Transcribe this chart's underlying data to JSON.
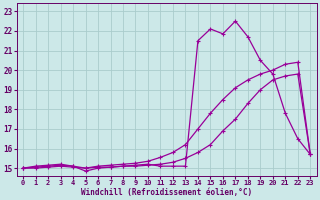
{
  "background_color": "#cce8e8",
  "grid_color": "#aacccc",
  "line_color": "#990099",
  "xlabel": "Windchill (Refroidissement éolien,°C)",
  "xlabel_color": "#660066",
  "tick_color": "#660066",
  "xlim": [
    -0.5,
    23.5
  ],
  "ylim": [
    14.6,
    23.4
  ],
  "yticks": [
    15,
    16,
    17,
    18,
    19,
    20,
    21,
    22,
    23
  ],
  "xticks": [
    0,
    1,
    2,
    3,
    4,
    5,
    6,
    7,
    8,
    9,
    10,
    11,
    12,
    13,
    14,
    15,
    16,
    17,
    18,
    19,
    20,
    21,
    22,
    23
  ],
  "line1_x": [
    0,
    1,
    2,
    3,
    4,
    5,
    6,
    7,
    8,
    9,
    10,
    11,
    12,
    13,
    14,
    15,
    16,
    17,
    18,
    19,
    20,
    21,
    22,
    23
  ],
  "line1_y": [
    15.0,
    15.1,
    15.15,
    15.2,
    15.1,
    14.85,
    15.0,
    15.05,
    15.1,
    15.15,
    15.2,
    15.1,
    15.1,
    15.1,
    21.5,
    22.1,
    21.85,
    22.5,
    21.7,
    20.5,
    19.8,
    17.8,
    16.5,
    15.7
  ],
  "line2_x": [
    0,
    1,
    2,
    3,
    4,
    5,
    6,
    7,
    8,
    9,
    10,
    11,
    12,
    13,
    14,
    15,
    16,
    17,
    18,
    19,
    20,
    21,
    22,
    23
  ],
  "line2_y": [
    15.0,
    15.0,
    15.05,
    15.1,
    15.05,
    15.0,
    15.05,
    15.05,
    15.1,
    15.1,
    15.15,
    15.2,
    15.3,
    15.5,
    15.8,
    16.2,
    16.9,
    17.5,
    18.3,
    19.0,
    19.5,
    19.7,
    19.8,
    15.7
  ],
  "line3_x": [
    0,
    1,
    2,
    3,
    4,
    5,
    6,
    7,
    8,
    9,
    10,
    11,
    12,
    13,
    14,
    15,
    16,
    17,
    18,
    19,
    20,
    21,
    22,
    23
  ],
  "line3_y": [
    15.0,
    15.05,
    15.1,
    15.15,
    15.1,
    15.0,
    15.1,
    15.15,
    15.2,
    15.25,
    15.35,
    15.55,
    15.8,
    16.2,
    17.0,
    17.8,
    18.5,
    19.1,
    19.5,
    19.8,
    20.0,
    20.3,
    20.4,
    15.7
  ]
}
